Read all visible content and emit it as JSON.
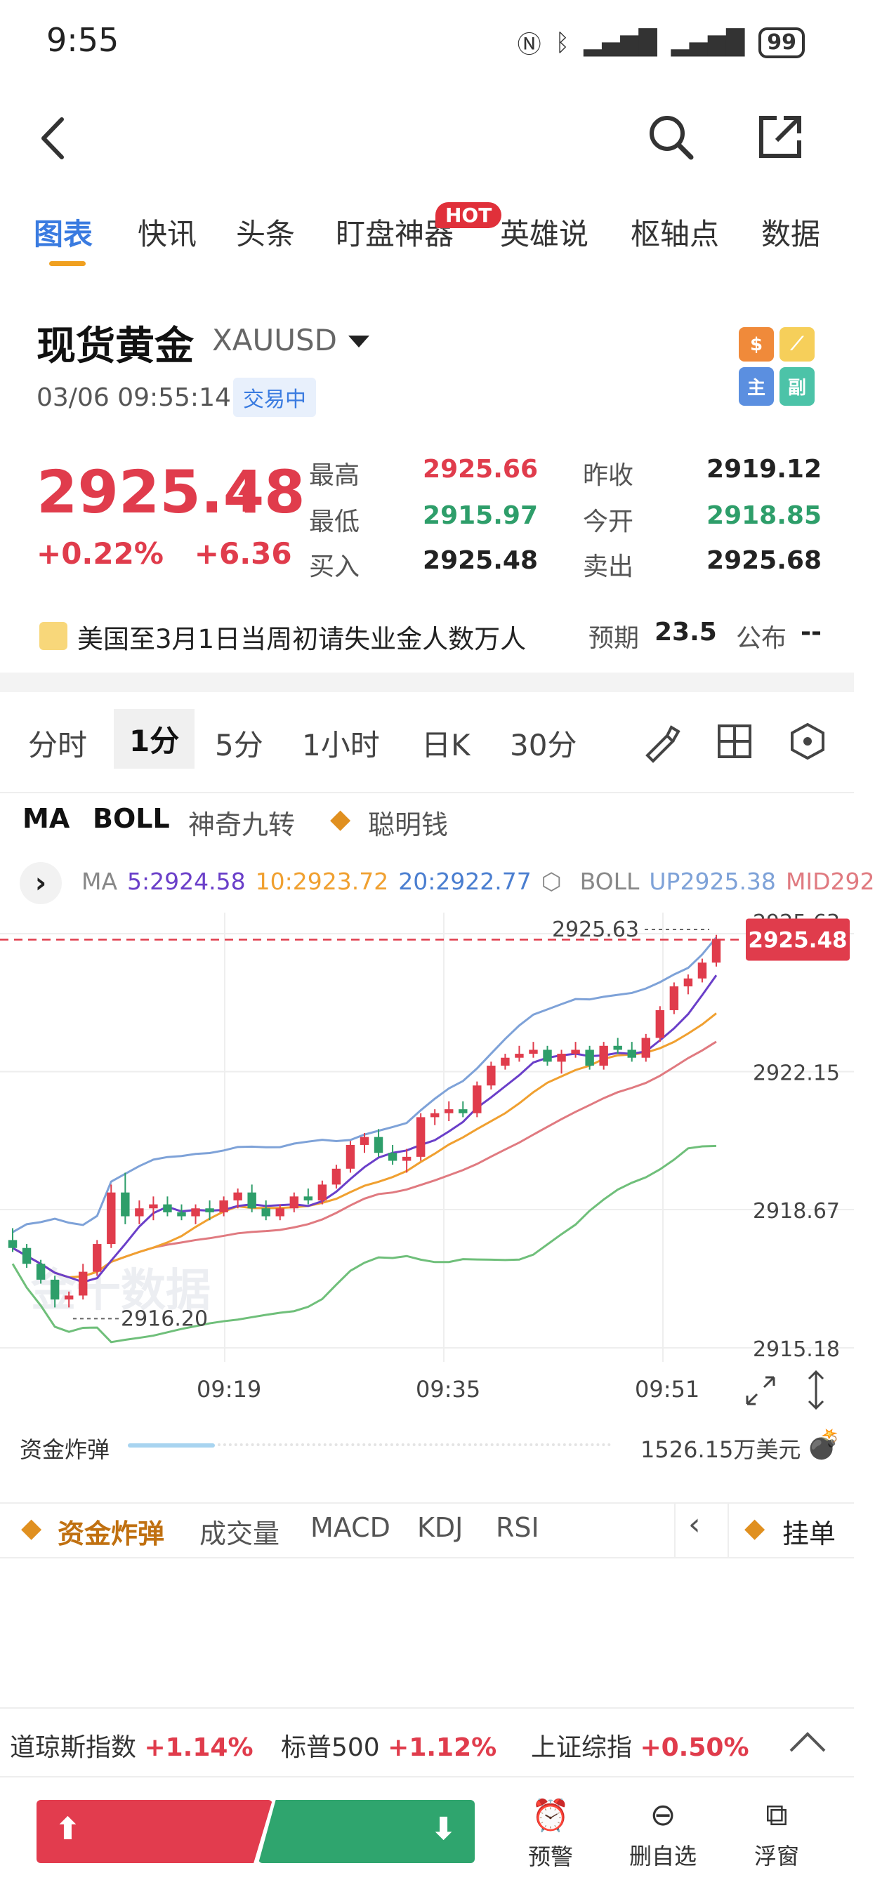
{
  "status": {
    "time": "9:55",
    "battery": "99"
  },
  "tabs": [
    "图表",
    "快讯",
    "头条",
    "盯盘神器",
    "英雄说",
    "枢轴点",
    "数据"
  ],
  "hot_badge": "HOT",
  "instrument": {
    "name": "现货黄金",
    "symbol": "XAUUSD",
    "datetime": "03/06 09:55:14",
    "status": "交易中"
  },
  "mini_icons": [
    "$",
    "⟋",
    "主",
    "副"
  ],
  "quote": {
    "price": "2925.48",
    "change_pct": "+0.22%",
    "change": "+6.36",
    "high_label": "最高",
    "high": "2925.66",
    "prev_close_label": "昨收",
    "prev_close": "2919.12",
    "low_label": "最低",
    "low": "2915.97",
    "open_label": "今开",
    "open": "2918.85",
    "bid_label": "买入",
    "bid": "2925.48",
    "ask_label": "卖出",
    "ask": "2925.68"
  },
  "news": {
    "text": "美国至3月1日当周初请失业金人数万人",
    "expected_label": "预期",
    "expected": "23.5",
    "publish_label": "公布",
    "publish": "--"
  },
  "periods": [
    "分时",
    "1分",
    "5分",
    "1小时",
    "日K",
    "30分"
  ],
  "indicators": [
    "MA",
    "BOLL",
    "神奇九转",
    "聪明钱"
  ],
  "ma_line": {
    "ma_label": "MA",
    "ma5": "5:2924.58",
    "ma10": "10:2923.72",
    "ma20": "20:2922.77",
    "boll_label": "BOLL",
    "boll_up": "UP2925.38",
    "boll_mid": "MID292"
  },
  "chart_data": {
    "type": "candlestick",
    "y_ticks": [
      "2925.63",
      "2922.15",
      "2918.67",
      "2915.18"
    ],
    "ylim": [
      2915.18,
      2925.63
    ],
    "x_ticks": [
      "09:19",
      "09:35",
      "09:51"
    ],
    "current_price": "2925.48",
    "high_marker": "2925.63",
    "low_marker": "2916.20",
    "watermark": "金十数据",
    "candles": [
      [
        2917.9,
        2918.2,
        2917.6,
        2917.7
      ],
      [
        2917.7,
        2917.8,
        2917.2,
        2917.3
      ],
      [
        2917.3,
        2917.4,
        2916.8,
        2916.9
      ],
      [
        2916.9,
        2917.0,
        2916.2,
        2916.4
      ],
      [
        2916.4,
        2916.6,
        2916.2,
        2916.5
      ],
      [
        2916.5,
        2917.3,
        2916.4,
        2917.1
      ],
      [
        2917.1,
        2917.9,
        2917.0,
        2917.8
      ],
      [
        2917.8,
        2919.3,
        2917.7,
        2919.1
      ],
      [
        2919.1,
        2919.6,
        2918.3,
        2918.5
      ],
      [
        2918.5,
        2918.9,
        2918.3,
        2918.7
      ],
      [
        2918.7,
        2919.0,
        2918.4,
        2918.8
      ],
      [
        2918.8,
        2919.0,
        2918.5,
        2918.6
      ],
      [
        2918.6,
        2918.8,
        2918.4,
        2918.5
      ],
      [
        2918.5,
        2918.8,
        2918.3,
        2918.7
      ],
      [
        2918.7,
        2918.9,
        2918.4,
        2918.6
      ],
      [
        2918.6,
        2919.0,
        2918.5,
        2918.9
      ],
      [
        2918.9,
        2919.2,
        2918.7,
        2919.1
      ],
      [
        2919.1,
        2919.3,
        2918.6,
        2918.7
      ],
      [
        2918.7,
        2918.9,
        2918.4,
        2918.5
      ],
      [
        2918.5,
        2918.8,
        2918.4,
        2918.7
      ],
      [
        2918.7,
        2919.1,
        2918.6,
        2919.0
      ],
      [
        2919.0,
        2919.2,
        2918.8,
        2918.9
      ],
      [
        2918.9,
        2919.4,
        2918.8,
        2919.3
      ],
      [
        2919.3,
        2919.8,
        2919.2,
        2919.7
      ],
      [
        2919.7,
        2920.4,
        2919.6,
        2920.3
      ],
      [
        2920.3,
        2920.6,
        2920.1,
        2920.5
      ],
      [
        2920.5,
        2920.7,
        2920.0,
        2920.1
      ],
      [
        2920.1,
        2920.3,
        2919.8,
        2919.9
      ],
      [
        2919.9,
        2920.2,
        2919.6,
        2920.0
      ],
      [
        2920.0,
        2921.1,
        2919.9,
        2921.0
      ],
      [
        2921.0,
        2921.2,
        2920.8,
        2921.1
      ],
      [
        2921.1,
        2921.4,
        2920.9,
        2921.2
      ],
      [
        2921.2,
        2921.4,
        2921.0,
        2921.1
      ],
      [
        2921.1,
        2921.9,
        2921.0,
        2921.8
      ],
      [
        2921.8,
        2922.4,
        2921.7,
        2922.3
      ],
      [
        2922.3,
        2922.6,
        2922.2,
        2922.5
      ],
      [
        2922.5,
        2922.8,
        2922.4,
        2922.6
      ],
      [
        2922.6,
        2922.9,
        2922.5,
        2922.7
      ],
      [
        2922.7,
        2922.8,
        2922.3,
        2922.4
      ],
      [
        2922.4,
        2922.7,
        2922.1,
        2922.6
      ],
      [
        2922.6,
        2922.9,
        2922.5,
        2922.7
      ],
      [
        2922.7,
        2922.8,
        2922.2,
        2922.3
      ],
      [
        2922.3,
        2922.9,
        2922.2,
        2922.8
      ],
      [
        2922.8,
        2923.0,
        2922.6,
        2922.7
      ],
      [
        2922.7,
        2922.9,
        2922.4,
        2922.5
      ],
      [
        2922.5,
        2923.1,
        2922.4,
        2923.0
      ],
      [
        2923.0,
        2923.8,
        2922.9,
        2923.7
      ],
      [
        2923.7,
        2924.4,
        2923.6,
        2924.3
      ],
      [
        2924.3,
        2924.6,
        2924.1,
        2924.5
      ],
      [
        2924.5,
        2925.0,
        2924.4,
        2924.9
      ],
      [
        2924.9,
        2925.6,
        2924.8,
        2925.5
      ]
    ]
  },
  "fund_bomb": {
    "label": "资金炸弹",
    "value": "1526.15万美元"
  },
  "bottom_tabs": [
    "资金炸弹",
    "成交量",
    "MACD",
    "KDJ",
    "RSI",
    "挂单"
  ],
  "indices": [
    {
      "name": "道琼斯指数",
      "change": "+1.14%"
    },
    {
      "name": "标普500",
      "change": "+1.12%"
    },
    {
      "name": "上证综指",
      "change": "+0.50%"
    }
  ],
  "actions": [
    "预警",
    "删自选",
    "浮窗"
  ],
  "colors": {
    "up": "#e03c4c",
    "down": "#2e9e6a",
    "accent": "#3a7be0",
    "ma5": "#6a3fc9",
    "ma10": "#f0a030",
    "ma20": "#e07a80",
    "boll_up": "#7ea2d8",
    "boll_low": "#6fbf7a"
  }
}
